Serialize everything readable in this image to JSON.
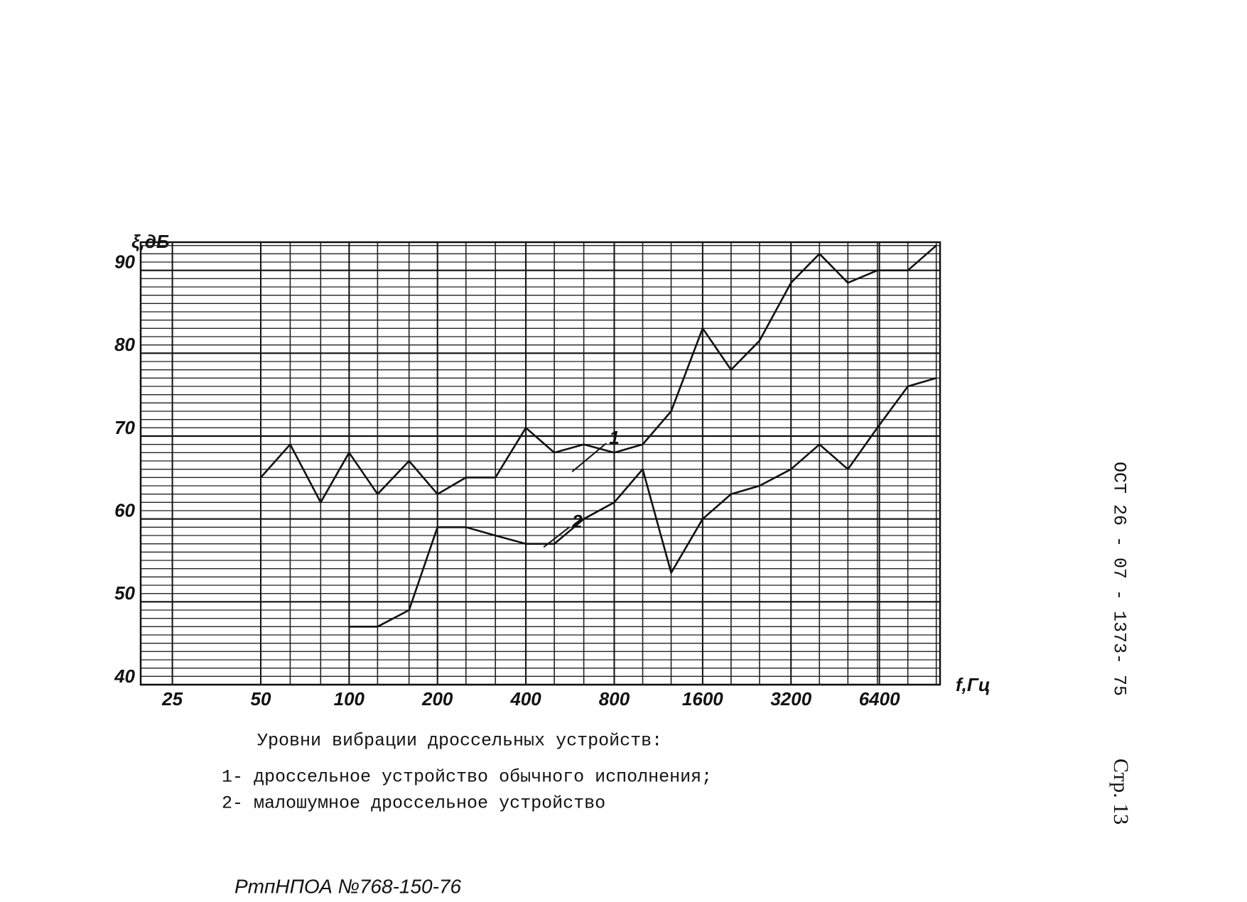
{
  "chart_data": {
    "type": "line",
    "y_label": "ξ,дБ",
    "x_label": "f,Гц",
    "log_x": true,
    "x": [
      50,
      63,
      80,
      100,
      125,
      160,
      200,
      250,
      315,
      400,
      500,
      630,
      800,
      1000,
      1250,
      1600,
      2000,
      2500,
      3200,
      4000,
      5000,
      6300,
      8000,
      10000
    ],
    "series": [
      {
        "name": "1",
        "color": "#111111",
        "values": [
          65,
          69,
          62,
          68,
          63,
          67,
          63,
          65,
          65,
          71,
          68,
          69,
          68,
          69,
          73,
          83,
          78,
          81.5,
          88.5,
          92,
          88.5,
          90,
          90,
          93
        ]
      },
      {
        "name": "2",
        "color": "#111111",
        "values": [
          null,
          null,
          null,
          47,
          47,
          49,
          59,
          59,
          58,
          57,
          57,
          60,
          62,
          66,
          53.5,
          60,
          63,
          64,
          66,
          69,
          66,
          71,
          76,
          77
        ]
      }
    ],
    "xlim": [
      19.5,
      10300
    ],
    "ylim": [
      40,
      93.4
    ],
    "xticks": [
      25,
      50,
      100,
      200,
      400,
      800,
      1600,
      3200,
      6400
    ],
    "yticks": [
      40,
      50,
      60,
      70,
      80,
      90
    ],
    "grid": true,
    "caption": [
      "Уровни вибрации дроссельных устройств:",
      "1- дроссельное устройство обычного исполнения;",
      "2- малошумное дроссельное устройство"
    ],
    "side_text": [
      "ОСТ 26 - 07 - 1373- 75",
      "Стр. 13"
    ],
    "footer": "РтпНПОА №768-150-76"
  }
}
